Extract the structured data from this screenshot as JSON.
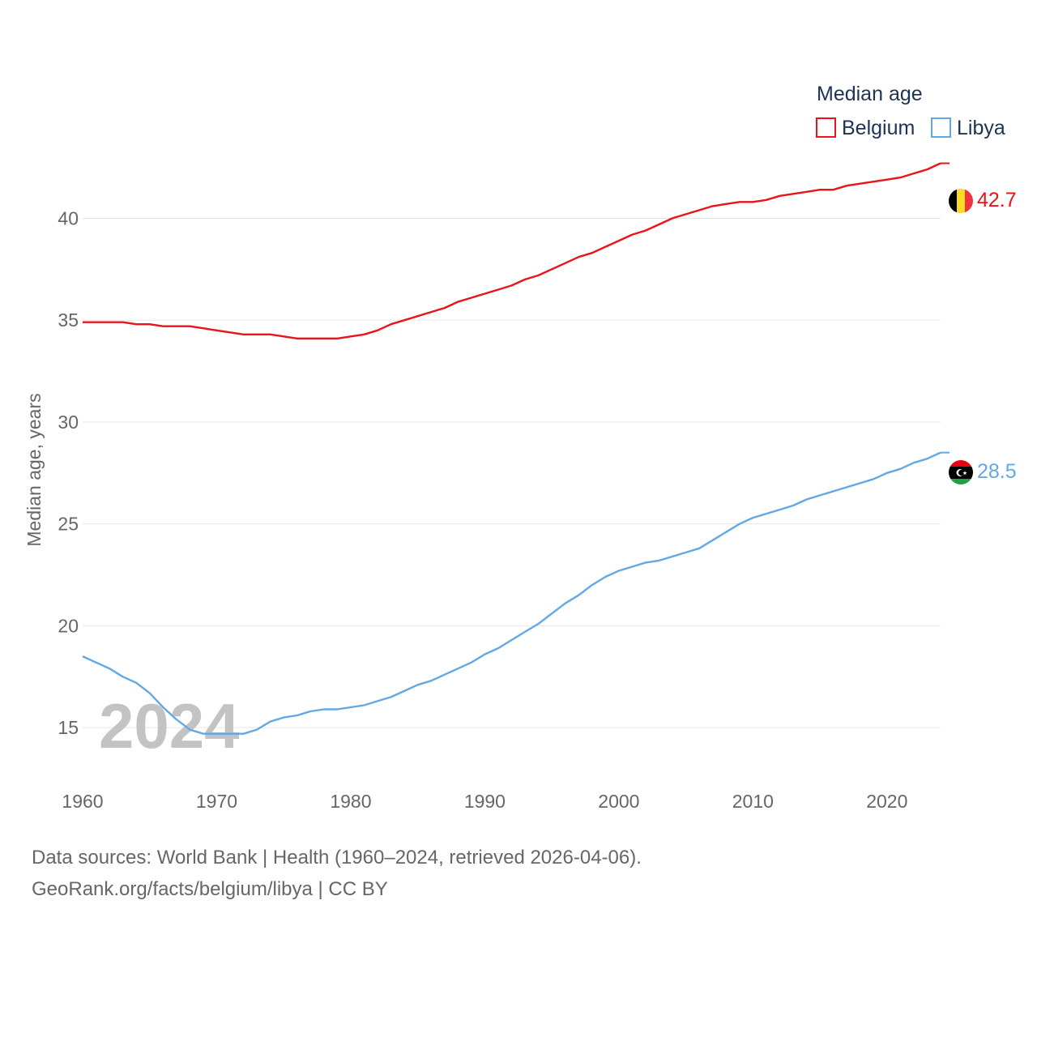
{
  "chart_data": {
    "type": "line",
    "ylabel": "Median age, years",
    "legend_title": "Median age",
    "watermark_year": "2024",
    "xlim": [
      1960,
      2024
    ],
    "ylim": [
      12.5,
      43
    ],
    "x_ticks": [
      1960,
      1970,
      1980,
      1990,
      2000,
      2010,
      2020
    ],
    "y_ticks": [
      15,
      20,
      25,
      30,
      35,
      40
    ],
    "grid": true,
    "legend_position": "top-right",
    "x": [
      1960,
      1961,
      1962,
      1963,
      1964,
      1965,
      1966,
      1967,
      1968,
      1969,
      1970,
      1971,
      1972,
      1973,
      1974,
      1975,
      1976,
      1977,
      1978,
      1979,
      1980,
      1981,
      1982,
      1983,
      1984,
      1985,
      1986,
      1987,
      1988,
      1989,
      1990,
      1991,
      1992,
      1993,
      1994,
      1995,
      1996,
      1997,
      1998,
      1999,
      2000,
      2001,
      2002,
      2003,
      2004,
      2005,
      2006,
      2007,
      2008,
      2009,
      2010,
      2011,
      2012,
      2013,
      2014,
      2015,
      2016,
      2017,
      2018,
      2019,
      2020,
      2021,
      2022,
      2023,
      2024
    ],
    "series": [
      {
        "name": "Belgium",
        "color": "#e8141a",
        "end_label": "42.7",
        "flag": "belgium-flag",
        "values": [
          34.9,
          34.9,
          34.9,
          34.9,
          34.8,
          34.8,
          34.7,
          34.7,
          34.7,
          34.6,
          34.5,
          34.4,
          34.3,
          34.3,
          34.3,
          34.2,
          34.1,
          34.1,
          34.1,
          34.1,
          34.2,
          34.3,
          34.5,
          34.8,
          35.0,
          35.2,
          35.4,
          35.6,
          35.9,
          36.1,
          36.3,
          36.5,
          36.7,
          37.0,
          37.2,
          37.5,
          37.8,
          38.1,
          38.3,
          38.6,
          38.9,
          39.2,
          39.4,
          39.7,
          40.0,
          40.2,
          40.4,
          40.6,
          40.7,
          40.8,
          40.8,
          40.9,
          41.1,
          41.2,
          41.3,
          41.4,
          41.4,
          41.6,
          41.7,
          41.8,
          41.9,
          42.0,
          42.2,
          42.4,
          42.7
        ]
      },
      {
        "name": "Libya",
        "color": "#62a8e5",
        "end_label": "28.5",
        "flag": "libya-flag",
        "values": [
          18.5,
          18.2,
          17.9,
          17.5,
          17.2,
          16.7,
          16.0,
          15.4,
          14.9,
          14.7,
          14.7,
          14.7,
          14.7,
          14.9,
          15.3,
          15.5,
          15.6,
          15.8,
          15.9,
          15.9,
          16.0,
          16.1,
          16.3,
          16.5,
          16.8,
          17.1,
          17.3,
          17.6,
          17.9,
          18.2,
          18.6,
          18.9,
          19.3,
          19.7,
          20.1,
          20.6,
          21.1,
          21.5,
          22.0,
          22.4,
          22.7,
          22.9,
          23.1,
          23.2,
          23.4,
          23.6,
          23.8,
          24.2,
          24.6,
          25.0,
          25.3,
          25.5,
          25.7,
          25.9,
          26.2,
          26.4,
          26.6,
          26.8,
          27.0,
          27.2,
          27.5,
          27.7,
          28.0,
          28.2,
          28.5
        ]
      }
    ]
  },
  "footer": {
    "line1": "Data sources: World Bank | Health (1960–2024, retrieved 2026-04-06).",
    "line2": "GeoRank.org/facts/belgium/libya | CC BY"
  }
}
